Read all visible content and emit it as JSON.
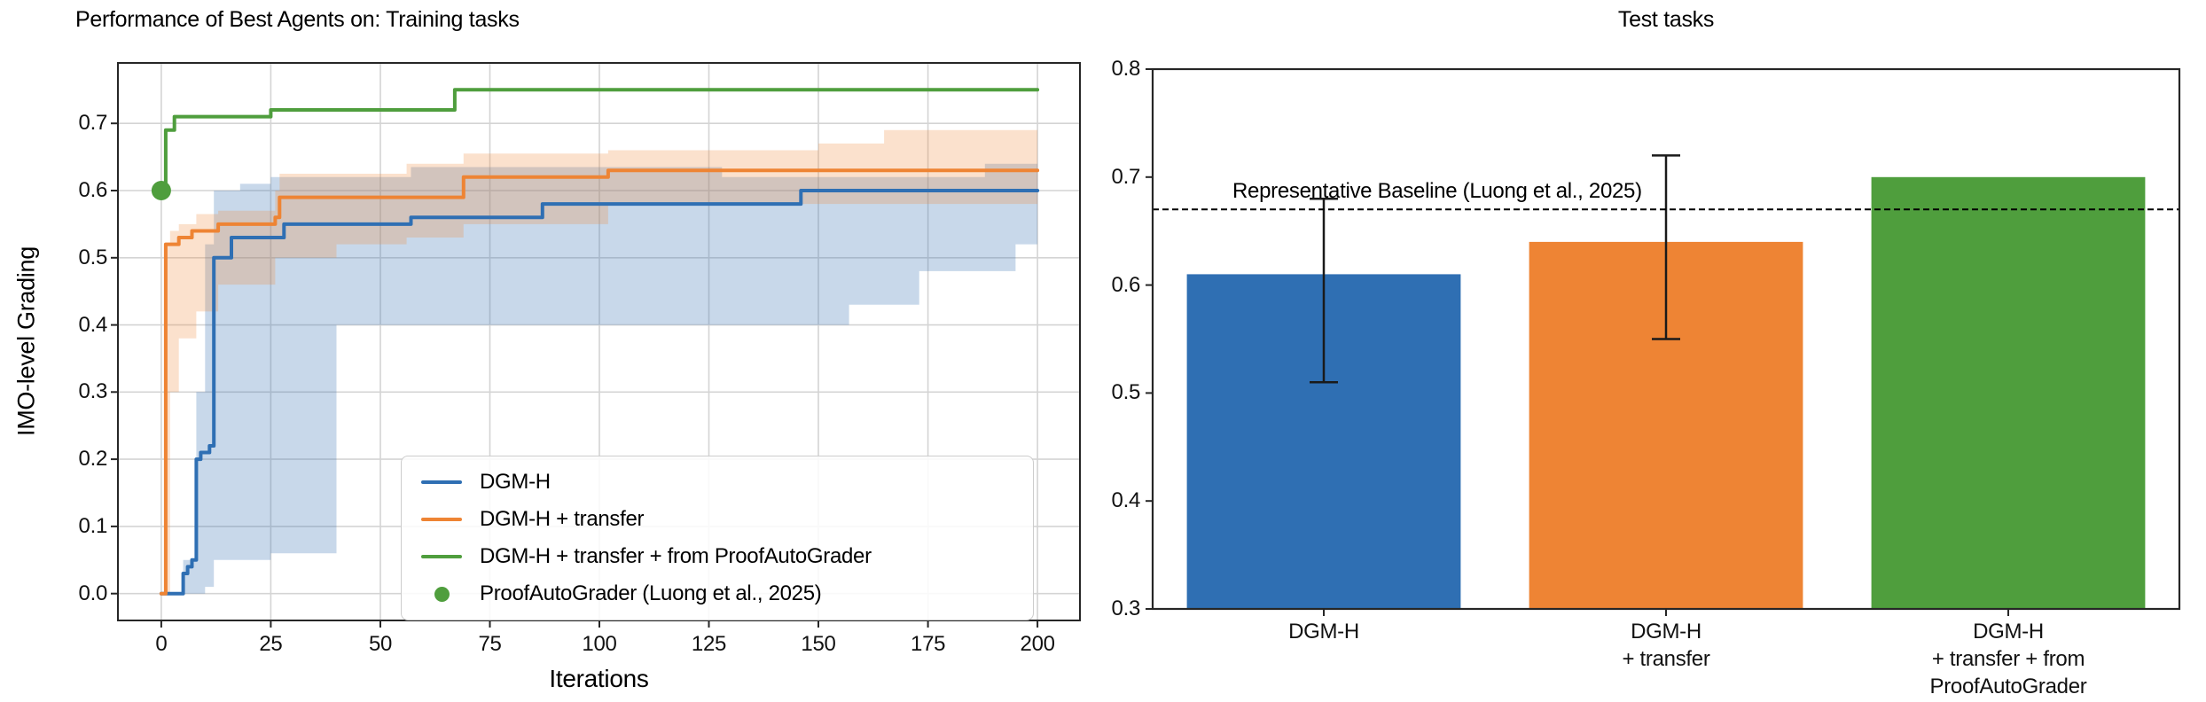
{
  "figure": {
    "background": "#ffffff",
    "grid_color": "#d4d4d4",
    "spine_color": "#262626",
    "text_color": "#000000"
  },
  "chart_data": [
    {
      "type": "line",
      "title": "Performance of Best Agents on: Training tasks",
      "xlabel": "Iterations",
      "ylabel": "IMO-level Grading",
      "xlim": [
        -9.9,
        209.7
      ],
      "ylim": [
        -0.04,
        0.79
      ],
      "grid": true,
      "legend_position": "lower right",
      "x_ticks": [
        "0",
        "25",
        "50",
        "75",
        "100",
        "125",
        "150",
        "175",
        "200"
      ],
      "y_ticks": [
        "0.0",
        "0.1",
        "0.2",
        "0.3",
        "0.4",
        "0.5",
        "0.6",
        "0.7"
      ],
      "series": [
        {
          "name": "DGM-H",
          "color": "#2f6fb3",
          "band_color": "rgba(56,114,180,0.28)",
          "points": [
            [
              0,
              0
            ],
            [
              4,
              0
            ],
            [
              5,
              0.03
            ],
            [
              6,
              0.04
            ],
            [
              7,
              0.05
            ],
            [
              8,
              0.2
            ],
            [
              9,
              0.21
            ],
            [
              11,
              0.22
            ],
            [
              12,
              0.5
            ],
            [
              15,
              0.5
            ],
            [
              16,
              0.53
            ],
            [
              27,
              0.53
            ],
            [
              28,
              0.55
            ],
            [
              56,
              0.55
            ],
            [
              57,
              0.56
            ],
            [
              86,
              0.56
            ],
            [
              87,
              0.58
            ],
            [
              145,
              0.58
            ],
            [
              146,
              0.6
            ],
            [
              200,
              0.6
            ]
          ],
          "band": [
            [
              5,
              0,
              0.05
            ],
            [
              8,
              0,
              0.3
            ],
            [
              10,
              0.01,
              0.52
            ],
            [
              12,
              0.05,
              0.6
            ],
            [
              18,
              0.05,
              0.61
            ],
            [
              25,
              0.06,
              0.62
            ],
            [
              39,
              0.06,
              0.62
            ],
            [
              40,
              0.4,
              0.62
            ],
            [
              57,
              0.4,
              0.635
            ],
            [
              128,
              0.4,
              0.62
            ],
            [
              157,
              0.43,
              0.62
            ],
            [
              173,
              0.48,
              0.62
            ],
            [
              188,
              0.48,
              0.64
            ],
            [
              195,
              0.52,
              0.64
            ],
            [
              200,
              0.52,
              0.64
            ]
          ]
        },
        {
          "name": "DGM-H + transfer",
          "color": "#ee8434",
          "band_color": "rgba(240,138,60,0.26)",
          "points": [
            [
              0,
              0
            ],
            [
              1,
              0.52
            ],
            [
              4,
              0.53
            ],
            [
              7,
              0.54
            ],
            [
              13,
              0.55
            ],
            [
              26,
              0.56
            ],
            [
              27,
              0.59
            ],
            [
              69,
              0.62
            ],
            [
              102,
              0.63
            ],
            [
              200,
              0.63
            ]
          ],
          "band": [
            [
              0,
              0,
              0
            ],
            [
              1,
              0,
              0.52
            ],
            [
              2,
              0.3,
              0.54
            ],
            [
              4,
              0.38,
              0.55
            ],
            [
              8,
              0.42,
              0.565
            ],
            [
              13,
              0.46,
              0.57
            ],
            [
              26,
              0.5,
              0.6
            ],
            [
              27,
              0.5,
              0.625
            ],
            [
              40,
              0.52,
              0.625
            ],
            [
              56,
              0.53,
              0.64
            ],
            [
              69,
              0.55,
              0.655
            ],
            [
              102,
              0.58,
              0.66
            ],
            [
              150,
              0.58,
              0.67
            ],
            [
              165,
              0.58,
              0.69
            ],
            [
              200,
              0.6,
              0.69
            ]
          ]
        },
        {
          "name": "DGM-H + transfer + from ProofAutoGrader",
          "color": "#4f9e3d",
          "points": [
            [
              0,
              0.6
            ],
            [
              1,
              0.69
            ],
            [
              3,
              0.71
            ],
            [
              25,
              0.72
            ],
            [
              67,
              0.75
            ],
            [
              200,
              0.75
            ]
          ]
        },
        {
          "name": "ProofAutoGrader (Luong et al., 2025)",
          "color": "#4f9e3d",
          "marker": "point",
          "point": [
            0,
            0.6
          ]
        }
      ]
    },
    {
      "type": "bar",
      "title": "Test tasks",
      "ylim": [
        0.3,
        0.8
      ],
      "grid": false,
      "y_ticks": [
        "0.3",
        "0.4",
        "0.5",
        "0.6",
        "0.7",
        "0.8"
      ],
      "categories": [
        [
          "DGM-H"
        ],
        [
          "DGM-H",
          "+ transfer"
        ],
        [
          "DGM-H",
          "+ transfer + from",
          "ProofAutoGrader"
        ]
      ],
      "values": [
        0.61,
        0.64,
        0.7
      ],
      "errors": [
        [
          0.51,
          0.68
        ],
        [
          0.55,
          0.72
        ],
        null
      ],
      "colors": [
        "#2f6fb3",
        "#ee8434",
        "#4f9e3d"
      ],
      "error_color": "#1a1a1a",
      "baseline": {
        "value": 0.67,
        "label": "Representative Baseline (Luong et al., 2025)",
        "style": "dashed",
        "color": "#000000"
      }
    }
  ]
}
